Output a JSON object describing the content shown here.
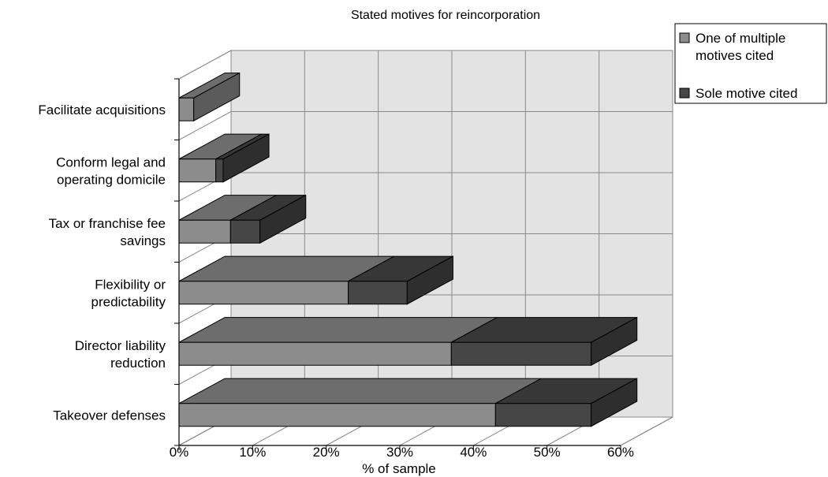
{
  "chart_data": {
    "type": "bar",
    "orientation": "horizontal",
    "stacked": true,
    "style": "3d",
    "title": "Stated motives for reincorporation",
    "xlabel": "% of sample",
    "ylabel": "",
    "xlim": [
      0,
      60
    ],
    "x_tick_labels": [
      "0%",
      "10%",
      "20%",
      "30%",
      "40%",
      "50%",
      "60%"
    ],
    "grid": true,
    "legend_position": "top-right",
    "categories": [
      [
        "Facilitate acquisitions"
      ],
      [
        "Conform legal and",
        "operating domicile"
      ],
      [
        "Tax or franchise fee",
        "savings"
      ],
      [
        "Flexibility or",
        "predictability"
      ],
      [
        "Director liability",
        "reduction"
      ],
      [
        "Takeover defenses"
      ]
    ],
    "series": [
      {
        "name": "One of multiple motives cited",
        "legend_lines": [
          "One of multiple",
          "motives cited"
        ],
        "color": "#8c8c8c",
        "values": [
          2,
          5,
          7,
          23,
          37,
          43
        ]
      },
      {
        "name": "Sole motive cited",
        "legend_lines": [
          "Sole motive cited"
        ],
        "color": "#464646",
        "values": [
          0,
          1,
          4,
          8,
          19,
          13
        ]
      }
    ]
  }
}
